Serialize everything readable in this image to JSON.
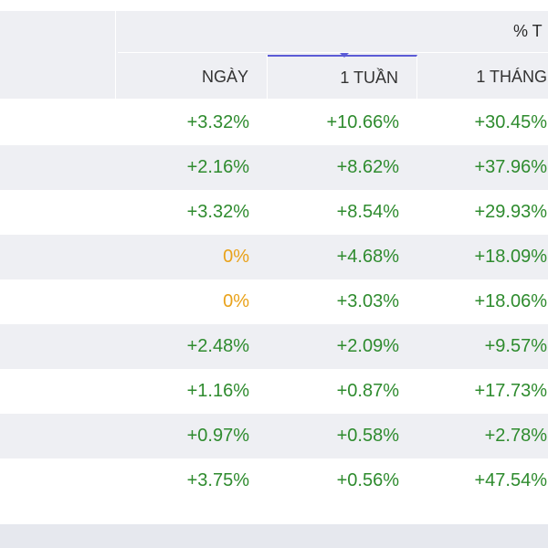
{
  "colors": {
    "header_bg": "#eeeff3",
    "positive": "#2e8b2e",
    "neutral": "#e9a21a",
    "sort_accent": "#5b5bd6"
  },
  "table": {
    "group_header": "% T",
    "columns": [
      "NGÀY",
      "1 TUẦN",
      "1 THÁNG"
    ],
    "rows": [
      {
        "day": "+3.32%",
        "week": "+10.66%",
        "month": "+30.45%"
      },
      {
        "day": "+2.16%",
        "week": "+8.62%",
        "month": "+37.96%"
      },
      {
        "day": "+3.32%",
        "week": "+8.54%",
        "month": "+29.93%"
      },
      {
        "day": "0%",
        "week": "+4.68%",
        "month": "+18.09%"
      },
      {
        "day": "0%",
        "week": "+3.03%",
        "month": "+18.06%"
      },
      {
        "day": "+2.48%",
        "week": "+2.09%",
        "month": "+9.57%"
      },
      {
        "day": "+1.16%",
        "week": "+0.87%",
        "month": "+17.73%"
      },
      {
        "day": "+0.97%",
        "week": "+0.58%",
        "month": "+2.78%"
      },
      {
        "day": "+3.75%",
        "week": "+0.56%",
        "month": "+47.54%"
      }
    ]
  }
}
